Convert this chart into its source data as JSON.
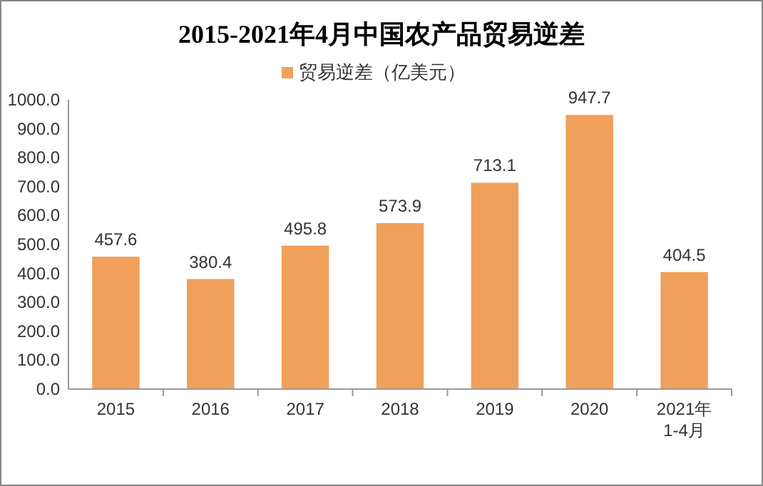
{
  "chart_data": {
    "type": "bar",
    "title": "2015-2021年4月中国农产品贸易逆差",
    "categories": [
      "2015",
      "2016",
      "2017",
      "2018",
      "2019",
      "2020",
      "2021年\n1-4月"
    ],
    "series": [
      {
        "name": "贸易逆差（亿美元）",
        "color": "#f0a05a",
        "values": [
          457.6,
          380.4,
          495.8,
          573.9,
          713.1,
          947.7,
          404.5
        ]
      }
    ],
    "ylim": [
      0,
      1000
    ],
    "yticks": [
      {
        "value": 0,
        "label": "0.0"
      },
      {
        "value": 100,
        "label": "100.0"
      },
      {
        "value": 200,
        "label": "200.0"
      },
      {
        "value": 300,
        "label": "300.0"
      },
      {
        "value": 400,
        "label": "400.0"
      },
      {
        "value": 500,
        "label": "500.0"
      },
      {
        "value": 600,
        "label": "600.0"
      },
      {
        "value": 700,
        "label": "700.0"
      },
      {
        "value": 800,
        "label": "800.0"
      },
      {
        "value": 900,
        "label": "900.0"
      },
      {
        "value": 1000,
        "label": "1000.0"
      }
    ],
    "data_labels": true,
    "legend": "top",
    "grid": false
  }
}
